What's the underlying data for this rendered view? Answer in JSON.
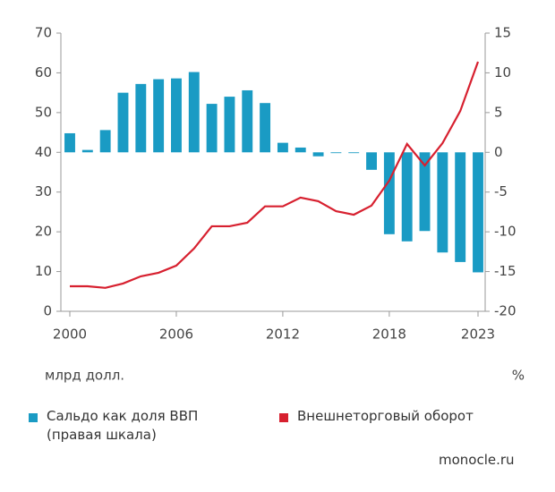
{
  "chart_data": {
    "type": "bar_line",
    "x": [
      2000,
      2001,
      2002,
      2003,
      2004,
      2005,
      2006,
      2007,
      2008,
      2009,
      2010,
      2011,
      2012,
      2013,
      2014,
      2015,
      2016,
      2017,
      2018,
      2019,
      2020,
      2021,
      2022,
      2023
    ],
    "xlim": [
      2000,
      2023
    ],
    "xticks": [
      2000,
      2006,
      2012,
      2018,
      2023
    ],
    "ylim": [
      0,
      70
    ],
    "yticks": [
      0,
      10,
      20,
      30,
      40,
      50,
      60,
      70
    ],
    "y2lim": [
      -20,
      15
    ],
    "y2ticks": [
      -20,
      -15,
      -10,
      -5,
      0,
      5,
      10,
      15
    ],
    "y_label": "млрд долл.",
    "y2_label": "%",
    "series": [
      {
        "name": "Сальдо как доля ВВП (правая шкала)",
        "type": "bar",
        "axis": "y2",
        "color": "#1a9bc4",
        "values": [
          2.4,
          0.3,
          2.8,
          7.5,
          8.6,
          9.2,
          9.3,
          10.1,
          6.1,
          7.0,
          7.8,
          6.2,
          1.2,
          0.6,
          -0.5,
          -0.1,
          -0.1,
          -2.2,
          -10.3,
          -11.2,
          -9.9,
          -12.6,
          -13.8,
          -15.1
        ]
      },
      {
        "name": "Внешнеторговый оборот",
        "type": "line",
        "axis": "y",
        "color": "#d7202f",
        "values": [
          6.3,
          6.3,
          5.9,
          7.0,
          8.8,
          9.7,
          11.5,
          15.8,
          21.4,
          21.4,
          22.3,
          26.4,
          26.4,
          28.6,
          27.7,
          25.2,
          24.3,
          26.6,
          32.9,
          42.1,
          36.7,
          42.3,
          50.4,
          62.8
        ]
      }
    ],
    "source": "monocle.ru"
  }
}
